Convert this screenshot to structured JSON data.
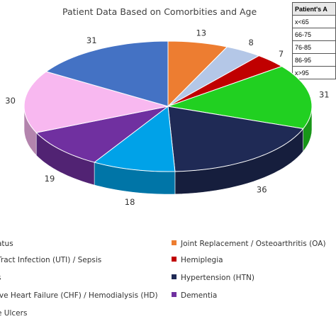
{
  "chart_data": {
    "type": "pie",
    "title": "Patient Data Based on Comorbities and Age",
    "slices": [
      {
        "label": "Joint Replacement / Osteoarthritis (OA)",
        "value": 13,
        "color": "#ED7D31"
      },
      {
        "label": "",
        "value": 8,
        "color": "#B4C7E7"
      },
      {
        "label": "Hemiplegia",
        "value": 7,
        "color": "#C00000"
      },
      {
        "label": "",
        "value": 31,
        "color": "#21D021"
      },
      {
        "label": "Hypertension (HTN)",
        "value": 36,
        "color": "#1F2A55"
      },
      {
        "label": "",
        "value": 18,
        "color": "#00A2E8"
      },
      {
        "label": "Dementia",
        "value": 19,
        "color": "#7030A0"
      },
      {
        "label": "",
        "value": 30,
        "color": "#F8B8F0"
      },
      {
        "label": "",
        "value": 31,
        "color": "#4472C4"
      }
    ]
  },
  "legend": {
    "left": [
      "atus",
      "Tract Infection (UTI) / Sepsis",
      "s",
      "ive Heart Failure (CHF) / Hemodialysis (HD)",
      "e Ulcers"
    ],
    "right": [
      {
        "label": "Joint Replacement / Osteoarthritis (OA)",
        "color": "#ED7D31"
      },
      {
        "label": "Hemiplegia",
        "color": "#C00000"
      },
      {
        "label": "Hypertension (HTN)",
        "color": "#1F2A55"
      },
      {
        "label": "Dementia",
        "color": "#7030A0"
      }
    ]
  },
  "table": {
    "header": "Patient's A",
    "rows": [
      "x<65",
      "66-75",
      "76-85",
      "86-95",
      "x>95"
    ]
  }
}
